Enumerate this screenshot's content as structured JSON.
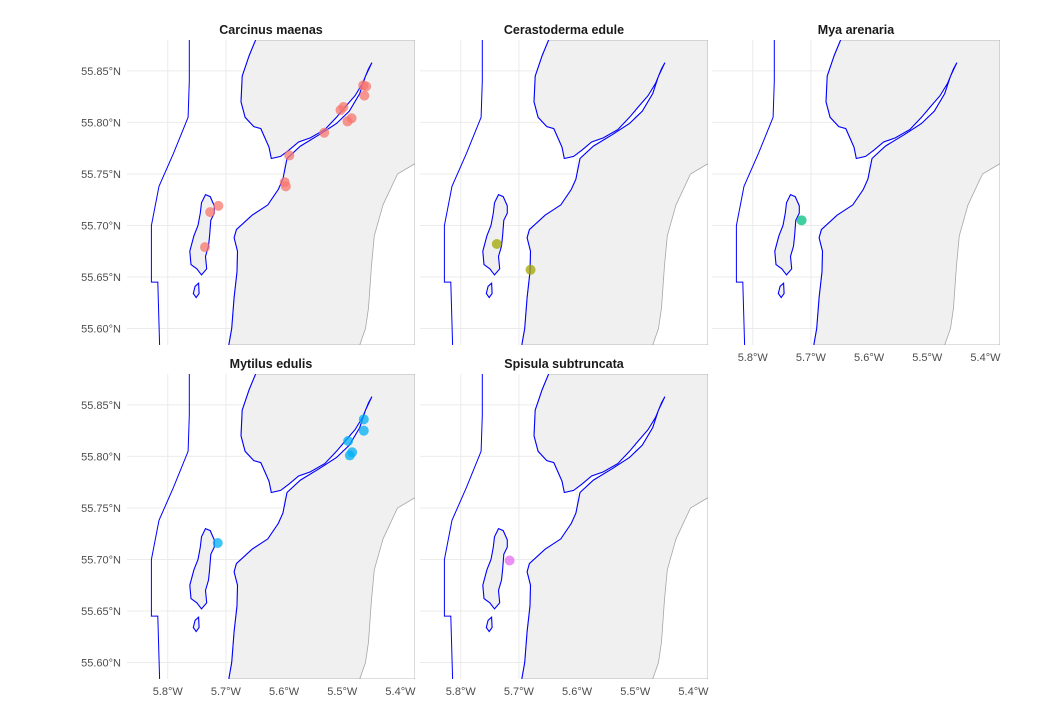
{
  "chart_data": {
    "type": "scatter",
    "subtype": "faceted map",
    "layout": {
      "rows": 2,
      "cols": 3,
      "facets_shown": 5
    },
    "xlabel": "",
    "ylabel": "",
    "xlim": [
      -5.87,
      -5.375
    ],
    "ylim": [
      55.584,
      55.88
    ],
    "x_ticks": [
      -5.8,
      -5.7,
      -5.6,
      -5.5,
      -5.4
    ],
    "x_tick_labels": [
      "5.8°W",
      "5.7°W",
      "5.6°W",
      "5.5°W",
      "5.4°W"
    ],
    "y_ticks": [
      55.85,
      55.8,
      55.75,
      55.7,
      55.65,
      55.6
    ],
    "y_tick_labels": [
      "55.85°N",
      "55.80°N",
      "55.75°N",
      "55.70°N",
      "55.65°N",
      "55.60°N"
    ],
    "grid": true,
    "legend": "none",
    "colors": {
      "land_fill": "#f0f0f0",
      "land_border": "#a6a6a6",
      "coast_line": "#0000ff",
      "grid": "#ebebeb"
    },
    "facets": [
      {
        "title": "Carcinus maenas",
        "color": "#f8766d",
        "points": [
          {
            "lon": -5.713,
            "lat": 55.719
          },
          {
            "lon": -5.727,
            "lat": 55.713
          },
          {
            "lon": -5.736,
            "lat": 55.679
          },
          {
            "lon": -5.599,
            "lat": 55.742
          },
          {
            "lon": -5.597,
            "lat": 55.738
          },
          {
            "lon": -5.591,
            "lat": 55.768
          },
          {
            "lon": -5.531,
            "lat": 55.79
          },
          {
            "lon": -5.498,
            "lat": 55.815
          },
          {
            "lon": -5.503,
            "lat": 55.812
          },
          {
            "lon": -5.484,
            "lat": 55.804
          },
          {
            "lon": -5.491,
            "lat": 55.801
          },
          {
            "lon": -5.464,
            "lat": 55.836
          },
          {
            "lon": -5.459,
            "lat": 55.835
          },
          {
            "lon": -5.462,
            "lat": 55.826
          }
        ]
      },
      {
        "title": "Cerastoderma edule",
        "color": "#a3a500",
        "points": [
          {
            "lon": -5.738,
            "lat": 55.682
          },
          {
            "lon": -5.68,
            "lat": 55.657
          }
        ]
      },
      {
        "title": "Mya arenaria",
        "color": "#00bf7d",
        "points": [
          {
            "lon": -5.716,
            "lat": 55.705
          }
        ]
      },
      {
        "title": "Mytilus edulis",
        "color": "#00b0f6",
        "points": [
          {
            "lon": -5.714,
            "lat": 55.716
          },
          {
            "lon": -5.49,
            "lat": 55.815
          },
          {
            "lon": -5.463,
            "lat": 55.836
          },
          {
            "lon": -5.463,
            "lat": 55.825
          },
          {
            "lon": -5.483,
            "lat": 55.804
          },
          {
            "lon": -5.487,
            "lat": 55.801
          }
        ]
      },
      {
        "title": "Spisula subtruncata",
        "color": "#e76bf3",
        "points": [
          {
            "lon": -5.716,
            "lat": 55.699
          }
        ]
      }
    ]
  }
}
